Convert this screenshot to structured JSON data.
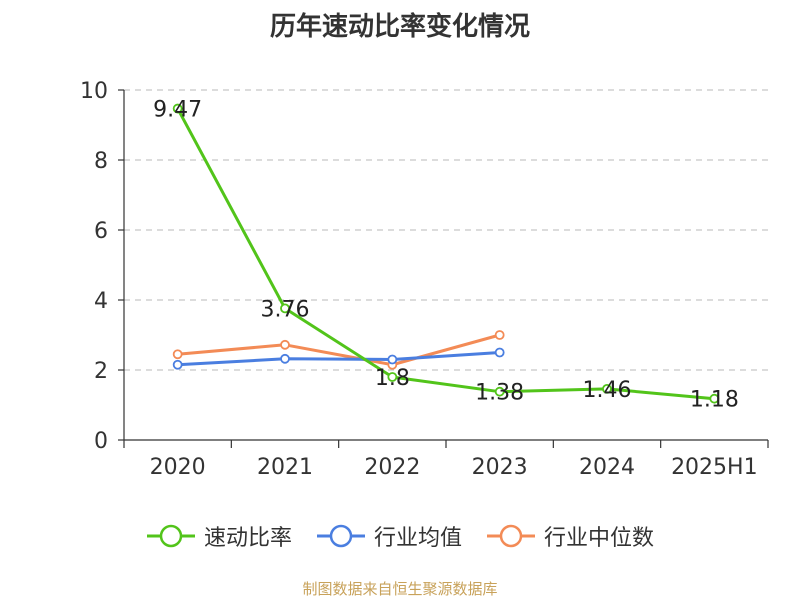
{
  "chart_data": {
    "type": "line",
    "title": "历年速动比率变化情况",
    "categories": [
      "2020",
      "2021",
      "2022",
      "2023",
      "2024",
      "2025H1"
    ],
    "y_ticks": [
      0,
      2,
      4,
      6,
      8,
      10
    ],
    "ylim": [
      0,
      10
    ],
    "grid": "horizontal dashed",
    "legend_position": "bottom",
    "series": [
      {
        "name": "速动比率",
        "color": "#52c41a",
        "values": [
          9.47,
          3.76,
          1.8,
          1.38,
          1.46,
          1.18
        ],
        "labels": [
          "9.47",
          "3.76",
          "1.8",
          "1.38",
          "1.46",
          "1.18"
        ]
      },
      {
        "name": "行业均值",
        "color": "#4a7ee0",
        "values": [
          2.15,
          2.32,
          2.3,
          2.5,
          null,
          null
        ]
      },
      {
        "name": "行业中位数",
        "color": "#f38b56",
        "values": [
          2.45,
          2.72,
          2.15,
          3.0,
          null,
          null
        ]
      }
    ]
  },
  "source": "制图数据来自恒生聚源数据库"
}
